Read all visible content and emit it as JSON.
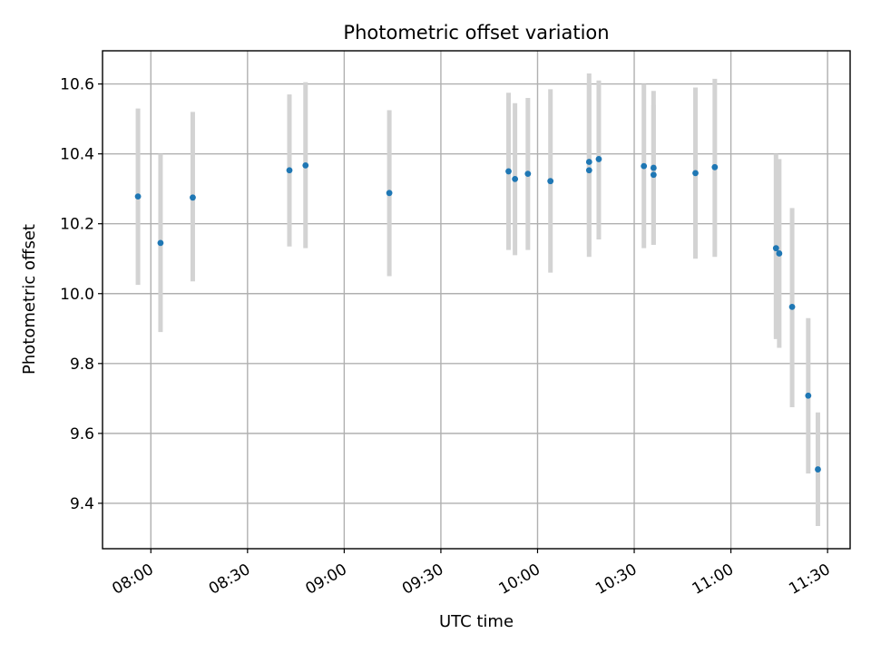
{
  "chart_data": {
    "type": "scatter",
    "title": "Photometric offset variation",
    "xlabel": "UTC time",
    "ylabel": "Photometric offset",
    "x_tick_labels": [
      "08:00",
      "08:30",
      "09:00",
      "09:30",
      "10:00",
      "10:30",
      "11:00",
      "11:30"
    ],
    "x_ticks": [
      "08:00",
      "08:30",
      "09:00",
      "09:30",
      "10:00",
      "10:30",
      "11:00",
      "11:30"
    ],
    "y_tick_labels": [
      "9.4",
      "9.6",
      "9.8",
      "10.0",
      "10.2",
      "10.4",
      "10.6"
    ],
    "y_ticks": [
      9.4,
      9.6,
      9.8,
      10.0,
      10.2,
      10.4,
      10.6
    ],
    "xlim": [
      "07:45",
      "11:37"
    ],
    "ylim": [
      9.27,
      10.695
    ],
    "grid": true,
    "x_tick_rotation": 30,
    "colors": {
      "points": "#1f77b4",
      "errorbars": "#d3d3d3",
      "grid": "#b0b0b0"
    },
    "points": [
      {
        "t": "07:56",
        "y": 10.278,
        "lo": 10.025,
        "hi": 10.53
      },
      {
        "t": "08:03",
        "y": 10.145,
        "lo": 9.89,
        "hi": 10.4
      },
      {
        "t": "08:13",
        "y": 10.275,
        "lo": 10.035,
        "hi": 10.52
      },
      {
        "t": "08:43",
        "y": 10.353,
        "lo": 10.135,
        "hi": 10.57
      },
      {
        "t": "08:48",
        "y": 10.367,
        "lo": 10.13,
        "hi": 10.605
      },
      {
        "t": "09:14",
        "y": 10.288,
        "lo": 10.05,
        "hi": 10.525
      },
      {
        "t": "09:51",
        "y": 10.35,
        "lo": 10.125,
        "hi": 10.575
      },
      {
        "t": "09:53",
        "y": 10.328,
        "lo": 10.11,
        "hi": 10.545
      },
      {
        "t": "09:57",
        "y": 10.343,
        "lo": 10.125,
        "hi": 10.56
      },
      {
        "t": "10:04",
        "y": 10.322,
        "lo": 10.06,
        "hi": 10.585
      },
      {
        "t": "10:16",
        "y": 10.353,
        "lo": 10.105,
        "hi": 10.6
      },
      {
        "t": "10:16",
        "y": 10.377,
        "lo": 10.125,
        "hi": 10.63
      },
      {
        "t": "10:19",
        "y": 10.385,
        "lo": 10.155,
        "hi": 10.61
      },
      {
        "t": "10:33",
        "y": 10.365,
        "lo": 10.13,
        "hi": 10.6
      },
      {
        "t": "10:36",
        "y": 10.34,
        "lo": 10.14,
        "hi": 10.54
      },
      {
        "t": "10:36",
        "y": 10.36,
        "lo": 10.14,
        "hi": 10.58
      },
      {
        "t": "10:49",
        "y": 10.345,
        "lo": 10.1,
        "hi": 10.59
      },
      {
        "t": "10:55",
        "y": 10.362,
        "lo": 10.105,
        "hi": 10.615
      },
      {
        "t": "11:14",
        "y": 10.13,
        "lo": 9.87,
        "hi": 10.4
      },
      {
        "t": "11:15",
        "y": 10.115,
        "lo": 9.845,
        "hi": 10.385
      },
      {
        "t": "11:19",
        "y": 9.962,
        "lo": 9.675,
        "hi": 10.245
      },
      {
        "t": "11:24",
        "y": 9.708,
        "lo": 9.485,
        "hi": 9.93
      },
      {
        "t": "11:27",
        "y": 9.497,
        "lo": 9.335,
        "hi": 9.66
      }
    ]
  }
}
